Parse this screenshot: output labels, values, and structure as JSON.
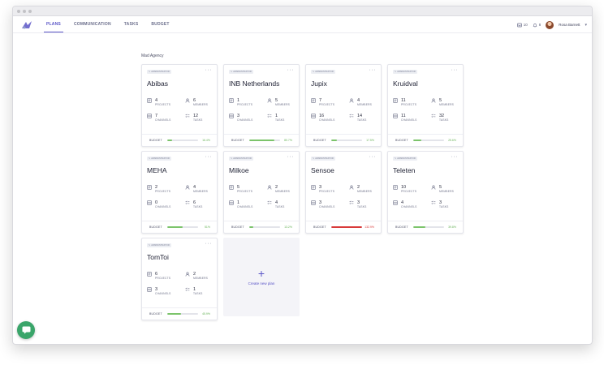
{
  "nav": {
    "items": [
      "PLANS",
      "COMMUNICATION",
      "TASKS",
      "BUDGET"
    ],
    "active_index": 0,
    "notifications": {
      "tasks_count": "10",
      "alerts_count": "8"
    },
    "user_name": "Rosa Barnett"
  },
  "organization": "Mad Agency",
  "labels": {
    "badge": "ADMINISTRATOR",
    "menu": "···",
    "projects": "PROJECTS",
    "members": "MEMBERS",
    "channels": "CHANNELS",
    "tasks": "TASKS",
    "budget": "BUDGET"
  },
  "plans": [
    {
      "name": "Abibas",
      "projects": "4",
      "members": "6",
      "channels": "7",
      "tasks": "12",
      "budget_pct": "16.4%",
      "budget_ratio": 0.164,
      "over_budget": false
    },
    {
      "name": "INB Netherlands",
      "projects": "1",
      "members": "5",
      "channels": "3",
      "tasks": "1",
      "budget_pct": "80.7%",
      "budget_ratio": 0.807,
      "over_budget": false
    },
    {
      "name": "Jupix",
      "projects": "7",
      "members": "4",
      "channels": "16",
      "tasks": "14",
      "budget_pct": "17.5%",
      "budget_ratio": 0.175,
      "over_budget": false
    },
    {
      "name": "Kruidval",
      "projects": "11",
      "members": "5",
      "channels": "11",
      "tasks": "32",
      "budget_pct": "25.6%",
      "budget_ratio": 0.256,
      "over_budget": false
    },
    {
      "name": "MEHA",
      "projects": "2",
      "members": "4",
      "channels": "0",
      "tasks": "6",
      "budget_pct": "51%",
      "budget_ratio": 0.51,
      "over_budget": false
    },
    {
      "name": "Milkoe",
      "projects": "5",
      "members": "2",
      "channels": "1",
      "tasks": "4",
      "budget_pct": "13.2%",
      "budget_ratio": 0.132,
      "over_budget": false
    },
    {
      "name": "Sensoe",
      "projects": "3",
      "members": "2",
      "channels": "3",
      "tasks": "3",
      "budget_pct": "132.9%",
      "budget_ratio": 1.0,
      "over_budget": true
    },
    {
      "name": "Teleten",
      "projects": "10",
      "members": "5",
      "channels": "4",
      "tasks": "3",
      "budget_pct": "39.8%",
      "budget_ratio": 0.398,
      "over_budget": false
    },
    {
      "name": "TomToi",
      "projects": "6",
      "members": "2",
      "channels": "3",
      "tasks": "1",
      "budget_pct": "45.9%",
      "budget_ratio": 0.459,
      "over_budget": false
    }
  ],
  "create_new_plan": "Create new plan",
  "colors": {
    "accent": "#5a55c7",
    "budget_ok": "#7cc46b",
    "budget_over": "#d83a3a",
    "chat": "#3aa56a"
  }
}
